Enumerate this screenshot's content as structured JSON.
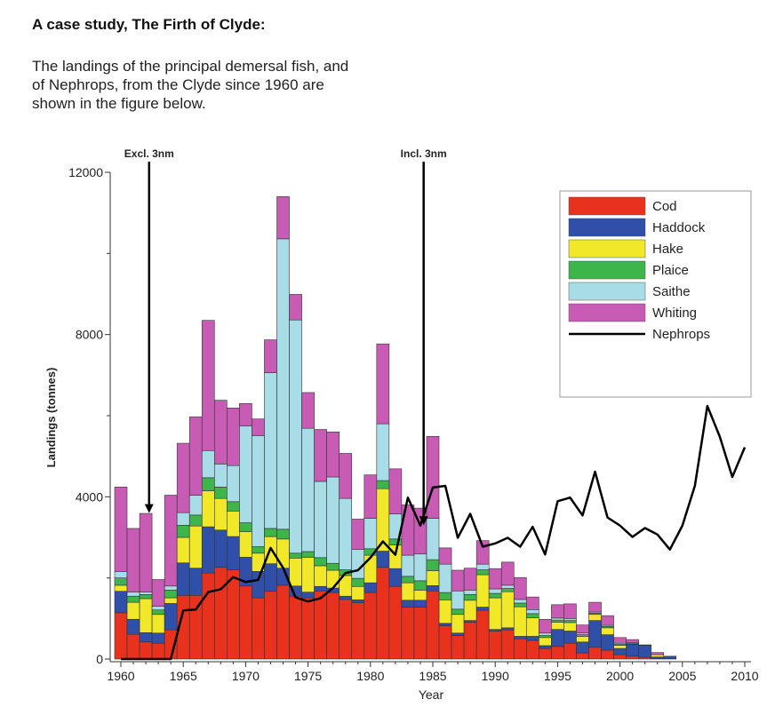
{
  "heading": "A case study, The Firth of Clyde:",
  "intro_lines": [
    "The landings of the principal demersal fish, and",
    "of Nephrops, from the Clyde since 1960 are",
    "shown in the figure below."
  ],
  "chart_data": {
    "type": "bar",
    "stacked": true,
    "xlabel": "Year",
    "ylabel": "Landings (tonnes)",
    "ylim": [
      0,
      12000
    ],
    "xlim": [
      1960,
      2010
    ],
    "yticks": [
      0,
      4000,
      8000,
      12000
    ],
    "xticks": [
      1960,
      1965,
      1970,
      1975,
      1980,
      1985,
      1990,
      1995,
      2000,
      2005,
      2010
    ],
    "grid": false,
    "legend_position": "top-right",
    "annotations": [
      {
        "text": "Excl. 3nm",
        "year": 1962.3,
        "arrow_to": 3600
      },
      {
        "text": "Incl. 3nm",
        "year": 1984.3,
        "arrow_to": 3300
      }
    ],
    "years": [
      1960,
      1961,
      1962,
      1963,
      1964,
      1965,
      1966,
      1967,
      1968,
      1969,
      1970,
      1971,
      1972,
      1973,
      1974,
      1975,
      1976,
      1977,
      1978,
      1979,
      1980,
      1981,
      1982,
      1983,
      1984,
      1985,
      1986,
      1987,
      1988,
      1989,
      1990,
      1991,
      1992,
      1993,
      1994,
      1995,
      1996,
      1997,
      1998,
      1999,
      2000,
      2001,
      2002,
      2003,
      2004
    ],
    "series": [
      {
        "name": "Cod",
        "color": "#e8321e",
        "values": [
          1140,
          610,
          420,
          390,
          720,
          1570,
          1570,
          2120,
          2260,
          2200,
          1800,
          1510,
          1670,
          1820,
          1550,
          1510,
          1680,
          1640,
          1470,
          1390,
          1640,
          2260,
          1790,
          1280,
          1280,
          1680,
          820,
          580,
          910,
          1200,
          690,
          720,
          500,
          460,
          260,
          310,
          390,
          150,
          290,
          220,
          110,
          70,
          40,
          20,
          10
        ]
      },
      {
        "name": "Haddock",
        "color": "#2f4fa8",
        "values": [
          530,
          370,
          230,
          250,
          650,
          800,
          670,
          1140,
          920,
          820,
          710,
          650,
          680,
          420,
          250,
          140,
          110,
          110,
          80,
          70,
          240,
          400,
          440,
          170,
          170,
          130,
          60,
          60,
          40,
          80,
          40,
          50,
          60,
          100,
          70,
          420,
          300,
          270,
          660,
          380,
          150,
          290,
          300,
          30,
          60
        ]
      },
      {
        "name": "Hake",
        "color": "#f2e82a",
        "values": [
          150,
          420,
          840,
          460,
          140,
          630,
          1040,
          890,
          780,
          630,
          630,
          450,
          670,
          720,
          690,
          860,
          510,
          440,
          510,
          330,
          680,
          1540,
          580,
          430,
          250,
          370,
          580,
          460,
          500,
          800,
          780,
          890,
          730,
          460,
          200,
          180,
          210,
          140,
          150,
          170,
          80,
          10,
          0,
          60,
          0
        ]
      },
      {
        "name": "Plaice",
        "color": "#3db54a",
        "values": [
          180,
          150,
          100,
          110,
          190,
          300,
          270,
          320,
          280,
          230,
          220,
          160,
          200,
          240,
          120,
          140,
          200,
          170,
          140,
          200,
          160,
          200,
          150,
          160,
          230,
          270,
          180,
          130,
          140,
          120,
          110,
          80,
          90,
          100,
          50,
          50,
          50,
          40,
          30,
          30,
          20,
          10,
          0,
          0,
          0
        ]
      },
      {
        "name": "Saithe",
        "color": "#a8dde8",
        "values": [
          160,
          100,
          60,
          90,
          100,
          310,
          490,
          670,
          570,
          890,
          2390,
          2740,
          3840,
          7160,
          5750,
          3040,
          1880,
          2130,
          1760,
          710,
          750,
          1400,
          620,
          520,
          660,
          1020,
          700,
          450,
          110,
          140,
          110,
          80,
          90,
          100,
          60,
          50,
          50,
          40,
          30,
          30,
          30,
          20,
          0,
          0,
          0
        ]
      },
      {
        "name": "Whiting",
        "color": "#c85cb4",
        "values": [
          2080,
          1570,
          1940,
          660,
          2240,
          1710,
          1930,
          3210,
          1570,
          1420,
          550,
          410,
          810,
          1040,
          630,
          880,
          1280,
          1110,
          1110,
          750,
          1070,
          1970,
          1110,
          1240,
          1130,
          2020,
          400,
          510,
          540,
          580,
          500,
          570,
          540,
          310,
          340,
          330,
          360,
          200,
          240,
          240,
          140,
          80,
          10,
          50,
          0
        ]
      }
    ],
    "line": {
      "name": "Nephrops",
      "color": "#000000",
      "years": [
        1960,
        1961,
        1962,
        1963,
        1964,
        1965,
        1966,
        1967,
        1968,
        1969,
        1970,
        1971,
        1972,
        1973,
        1974,
        1975,
        1976,
        1977,
        1978,
        1979,
        1980,
        1981,
        1982,
        1983,
        1984,
        1985,
        1986,
        1987,
        1988,
        1989,
        1990,
        1991,
        1992,
        1993,
        1994,
        1995,
        1996,
        1997,
        1998,
        1999,
        2000,
        2001,
        2002,
        2003,
        2004,
        2005,
        2006,
        2007,
        2008,
        2009,
        2010
      ],
      "values": [
        0,
        0,
        0,
        0,
        0,
        1200,
        1220,
        1650,
        1720,
        2020,
        1900,
        1950,
        2740,
        2250,
        1520,
        1420,
        1500,
        1750,
        2120,
        2190,
        2500,
        2900,
        2570,
        3980,
        3290,
        4230,
        4270,
        2990,
        3580,
        2770,
        2850,
        2990,
        2770,
        3260,
        2580,
        3890,
        3980,
        3540,
        4620,
        3490,
        3290,
        3010,
        3230,
        3070,
        2700,
        3290,
        4270,
        6240,
        5480,
        4490,
        5220
      ]
    }
  }
}
